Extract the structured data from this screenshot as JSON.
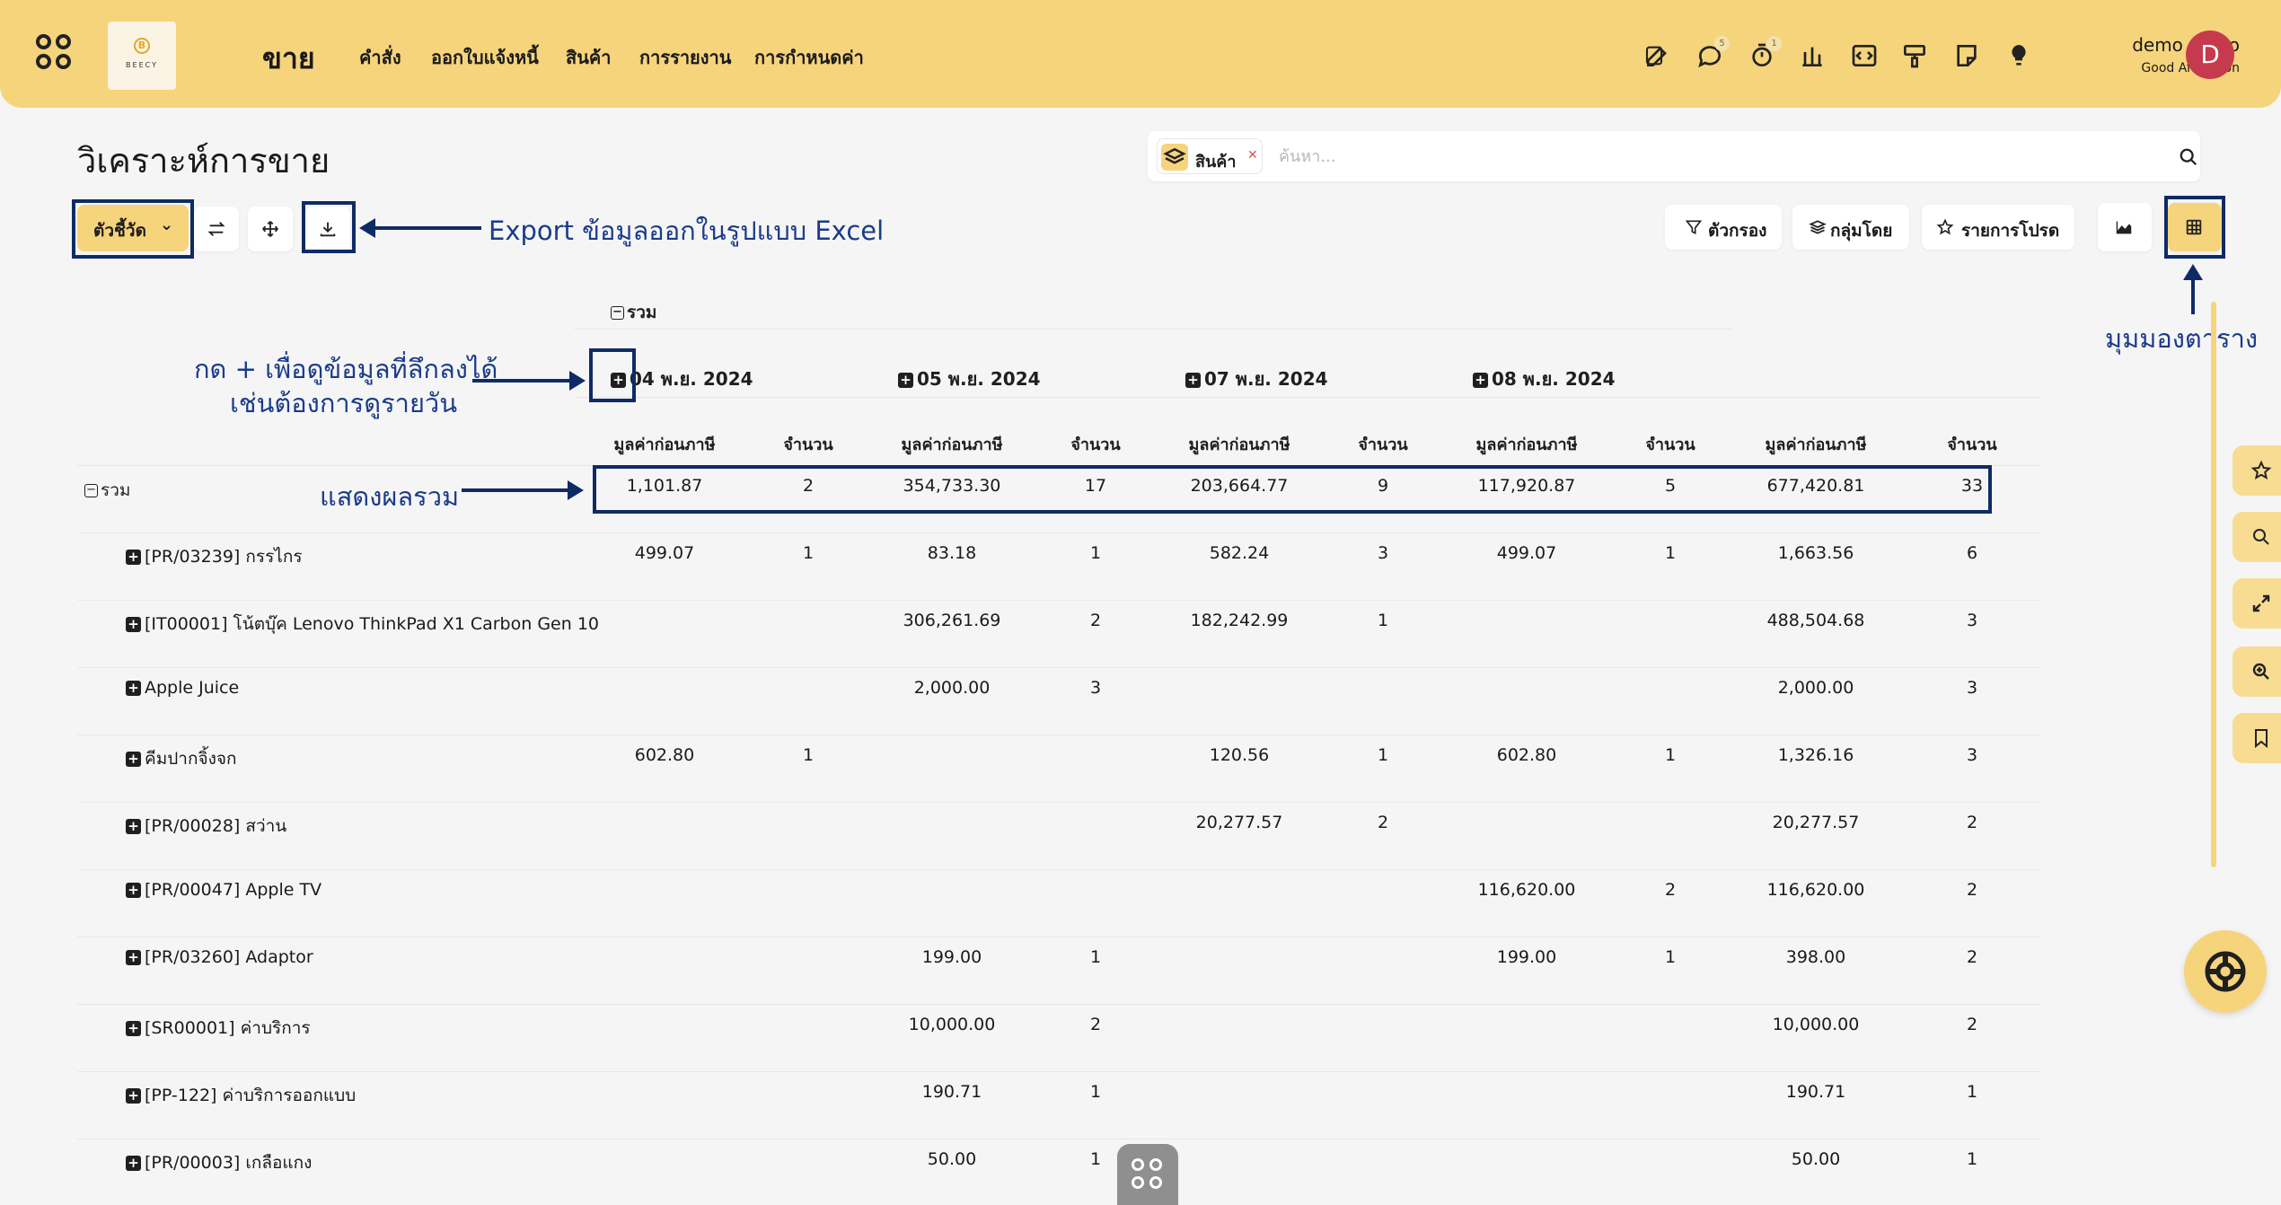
{
  "topbar": {
    "module": "ขาย",
    "logo_text": "BEECY",
    "nav": [
      "คำสั่ง",
      "ออกใบแจ้งหนี้",
      "สินค้า",
      "การรายงาน",
      "การกำหนดค่า"
    ],
    "badges": {
      "chat": "5",
      "timer": "1"
    },
    "user_name": "demo demo",
    "greeting": "Good Afternoon",
    "avatar_initial": "D"
  },
  "page": {
    "title": "วิเคราะห์การขาย",
    "search_chip": "สินค้า",
    "search_placeholder": "ค้นหา...",
    "measure_button": "ตัวชี้วัด",
    "filter_button": "ตัวกรอง",
    "group_button": "กลุ่มโดย",
    "favorite_button": "รายการโปรด"
  },
  "annotations": {
    "export": "Export ข้อมูลออกในรูปแบบ Excel",
    "drilldown_line1": "กด + เพื่อดูข้อมูลที่ลึกลงได้",
    "drilldown_line2": "เช่นต้องการดูรายวัน",
    "total": "แสดงผลรวม",
    "table_view": "มุมมองตาราง"
  },
  "pivot": {
    "top_total": "รวม",
    "dates": [
      "04 พ.ย. 2024",
      "05 พ.ย. 2024",
      "07 พ.ย. 2024",
      "08 พ.ย. 2024"
    ],
    "col_untaxed": "มูลค่าก่อนภาษี",
    "col_qty": "จำนวน",
    "row_total_label": "รวม",
    "total_row": [
      "1,101.87",
      "2",
      "354,733.30",
      "17",
      "203,664.77",
      "9",
      "117,920.87",
      "5",
      "677,420.81",
      "33"
    ],
    "rows": [
      {
        "label": "[PR/03239] กรรไกร",
        "cells": [
          "499.07",
          "1",
          "83.18",
          "1",
          "582.24",
          "3",
          "499.07",
          "1",
          "1,663.56",
          "6"
        ]
      },
      {
        "label": "[IT00001] โน้ตบุ๊ค Lenovo ThinkPad X1 Carbon Gen 10",
        "cells": [
          "",
          "",
          "306,261.69",
          "2",
          "182,242.99",
          "1",
          "",
          "",
          "488,504.68",
          "3"
        ]
      },
      {
        "label": "Apple Juice",
        "cells": [
          "",
          "",
          "2,000.00",
          "3",
          "",
          "",
          "",
          "",
          "2,000.00",
          "3"
        ]
      },
      {
        "label": "คีมปากจิ้งจก",
        "cells": [
          "602.80",
          "1",
          "",
          "",
          "120.56",
          "1",
          "602.80",
          "1",
          "1,326.16",
          "3"
        ]
      },
      {
        "label": "[PR/00028] สว่าน",
        "cells": [
          "",
          "",
          "",
          "",
          "20,277.57",
          "2",
          "",
          "",
          "20,277.57",
          "2"
        ]
      },
      {
        "label": "[PR/00047] Apple TV",
        "cells": [
          "",
          "",
          "",
          "",
          "",
          "",
          "116,620.00",
          "2",
          "116,620.00",
          "2"
        ]
      },
      {
        "label": "[PR/03260] Adaptor",
        "cells": [
          "",
          "",
          "199.00",
          "1",
          "",
          "",
          "199.00",
          "1",
          "398.00",
          "2"
        ]
      },
      {
        "label": "[SR00001] ค่าบริการ",
        "cells": [
          "",
          "",
          "10,000.00",
          "2",
          "",
          "",
          "",
          "",
          "10,000.00",
          "2"
        ]
      },
      {
        "label": "[PP-122] ค่าบริการออกแบบ",
        "cells": [
          "",
          "",
          "190.71",
          "1",
          "",
          "",
          "",
          "",
          "190.71",
          "1"
        ]
      },
      {
        "label": "[PR/00003] เกลือแกง",
        "cells": [
          "",
          "",
          "50.00",
          "1",
          "",
          "",
          "",
          "",
          "50.00",
          "1"
        ]
      }
    ]
  },
  "colors": {
    "brand_yellow": "#f6d47c",
    "annotation_navy": "#0f2b66",
    "avatar_red": "#c63a4e"
  },
  "icons": [
    "apps-icon",
    "edit-icon",
    "chat-icon",
    "timer-icon",
    "bank-icon",
    "code-icon",
    "paint-icon",
    "note-icon",
    "bulb-icon",
    "search-icon",
    "swap-icon",
    "move-icon",
    "download-icon",
    "filter-icon",
    "layers-icon",
    "star-icon",
    "area-chart-icon",
    "table-icon",
    "zoom-icon",
    "expand-icon",
    "bookmark-icon",
    "lifebuoy-icon"
  ]
}
